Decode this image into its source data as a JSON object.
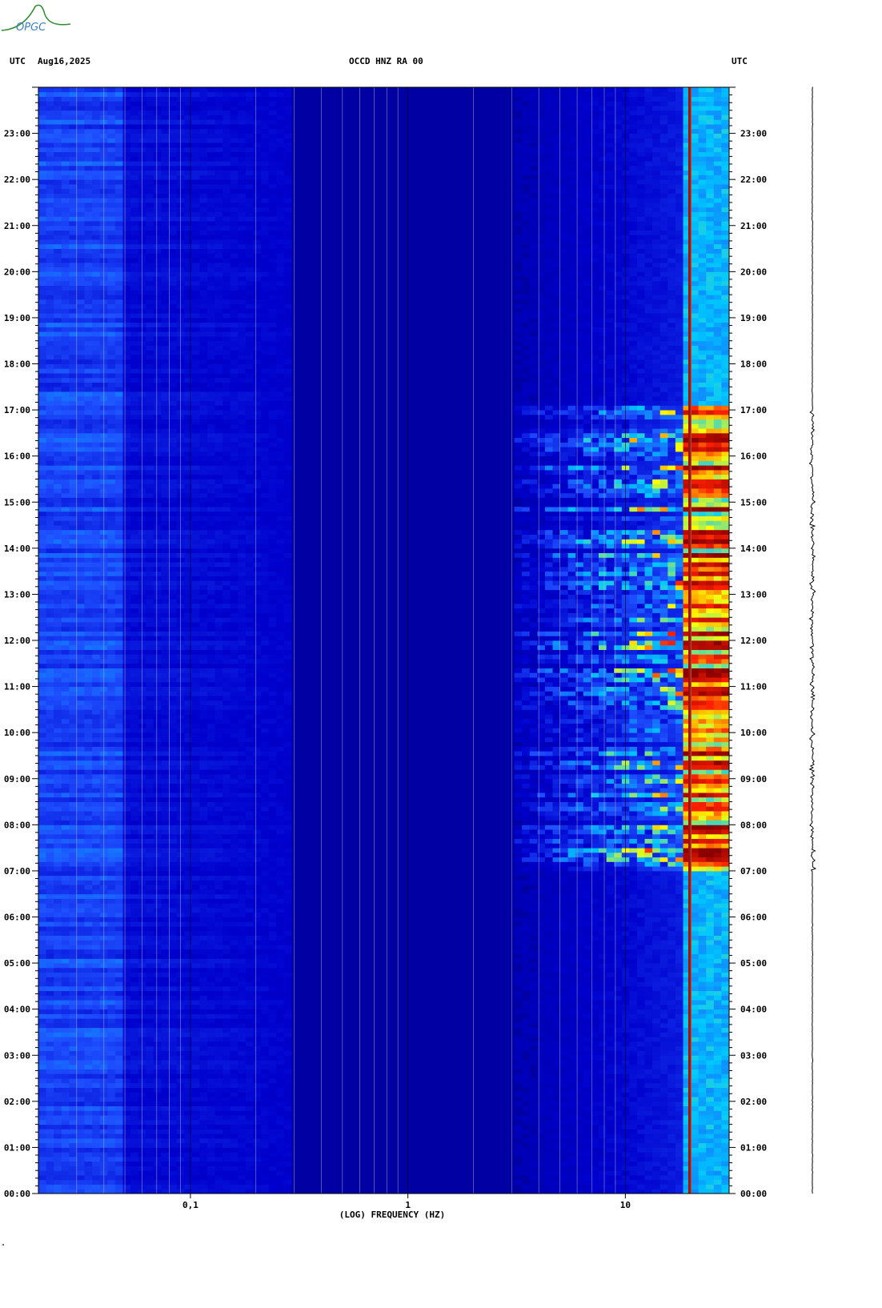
{
  "header": {
    "left_tz": "UTC",
    "date": "Aug16,2025",
    "station": "OCCD HNZ RA 00",
    "right_tz": "UTC"
  },
  "logo": {
    "text": "OPGC",
    "color": "#3a7fc4"
  },
  "footer_mark": "\"",
  "chart_data": {
    "type": "heatmap",
    "title": "OCCD HNZ RA 00",
    "xlabel": "(LOG) FREQUENCY (HZ)",
    "xscale": "log",
    "xlim": [
      0.02,
      30
    ],
    "x_tick_labels": [
      {
        "value": 0.1,
        "label": "0,1"
      },
      {
        "value": 1,
        "label": "1"
      },
      {
        "value": 10,
        "label": "10"
      }
    ],
    "ylabel": "UTC",
    "y_tick_labels": [
      "00:00",
      "01:00",
      "02:00",
      "03:00",
      "04:00",
      "05:00",
      "06:00",
      "07:00",
      "08:00",
      "09:00",
      "10:00",
      "11:00",
      "12:00",
      "13:00",
      "14:00",
      "15:00",
      "16:00",
      "17:00",
      "18:00",
      "19:00",
      "20:00",
      "21:00",
      "22:00",
      "23:00"
    ],
    "ylim_hours": [
      0,
      24
    ],
    "colormap": [
      "#00008b",
      "#0000cd",
      "#1e50ff",
      "#00c8ff",
      "#ffff00",
      "#ff2000",
      "#8b0000"
    ],
    "persistent_line_hz": 19.8,
    "activity_window_hours": [
      7,
      17
    ]
  }
}
